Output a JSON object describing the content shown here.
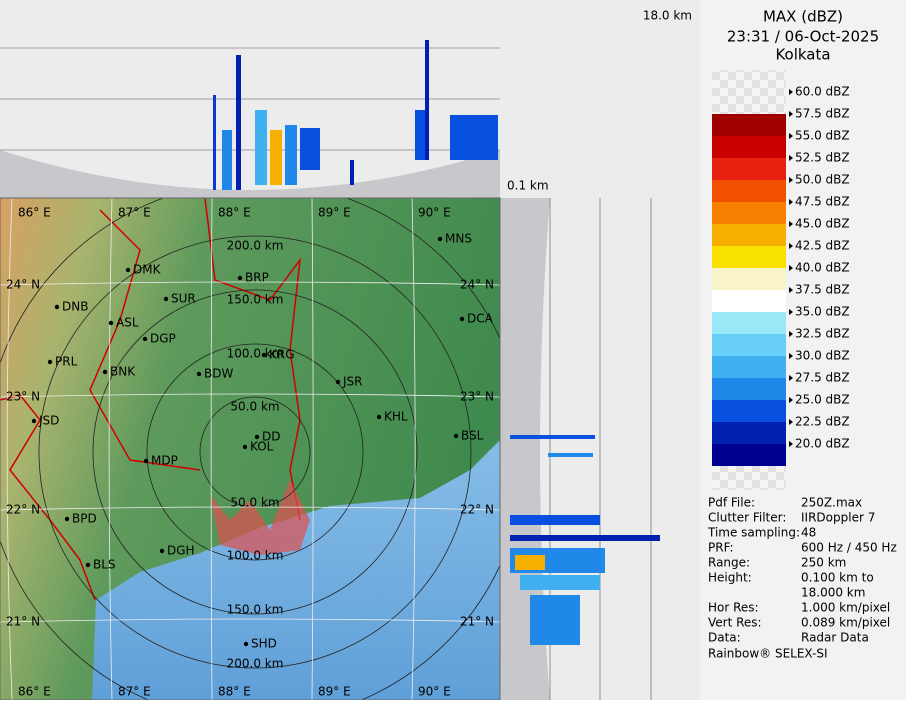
{
  "header": {
    "title": "MAX (dBZ)",
    "time": "23:31 / 06-Oct-2025",
    "place": "Kolkata"
  },
  "legend": {
    "labels": [
      "60.0 dBZ",
      "57.5 dBZ",
      "55.0 dBZ",
      "52.5 dBZ",
      "50.0 dBZ",
      "47.5 dBZ",
      "45.0 dBZ",
      "42.5 dBZ",
      "40.0 dBZ",
      "37.5 dBZ",
      "35.0 dBZ",
      "32.5 dBZ",
      "30.0 dBZ",
      "27.5 dBZ",
      "25.0 dBZ",
      "22.5 dBZ",
      "20.0 dBZ"
    ],
    "colors": [
      "#a00000",
      "#c80000",
      "#e82010",
      "#f05000",
      "#f88000",
      "#f8b000",
      "#f8e000",
      "#f8f4c8",
      "#ffffff",
      "#98e8f8",
      "#68d0f8",
      "#40b0f0",
      "#2088e8",
      "#0850e0",
      "#0020b0",
      "#000090"
    ]
  },
  "info": {
    "rows": [
      {
        "key": "Pdf File:",
        "value": [
          "250Z.max"
        ]
      },
      {
        "key": "Clutter Filter:",
        "value": [
          "IIRDoppler 7"
        ]
      },
      {
        "key": "Time sampling:",
        "value": [
          "48"
        ]
      },
      {
        "key": "PRF:",
        "value": [
          "600 Hz / 450 Hz"
        ]
      },
      {
        "key": "Range:",
        "value": [
          "250 km"
        ]
      },
      {
        "key": "Height:",
        "value": [
          "0.100 km to",
          "18.000 km"
        ]
      },
      {
        "key": "Hor Res:",
        "value": [
          "1.000 km/pixel"
        ]
      },
      {
        "key": "Vert Res:",
        "value": [
          "0.089 km/pixel"
        ]
      },
      {
        "key": "Data:",
        "value": [
          "Radar Data"
        ]
      }
    ],
    "footer": "Rainbow® SELEX-SI"
  },
  "section": {
    "top_label": "18.0 km",
    "bottom_label": "0.1 km"
  },
  "map": {
    "lon_labels": [
      "86° E",
      "87° E",
      "88° E",
      "89° E",
      "90° E"
    ],
    "lat_labels": [
      "24° N",
      "23° N",
      "22° N",
      "21° N"
    ],
    "range_labels": [
      "50.0 km",
      "100.0 km",
      "150.0 km",
      "200.0 km"
    ],
    "cities": [
      "MNS",
      "DMK",
      "BRP",
      "SUR",
      "DNB",
      "ASL",
      "DCA",
      "DGP",
      "KRG",
      "PRL",
      "BNK",
      "BDW",
      "JSR",
      "KHL",
      "JSD",
      "BSL",
      "DD",
      "KOL",
      "MDP",
      "BPD",
      "DGH",
      "BLS",
      "SHD"
    ]
  }
}
